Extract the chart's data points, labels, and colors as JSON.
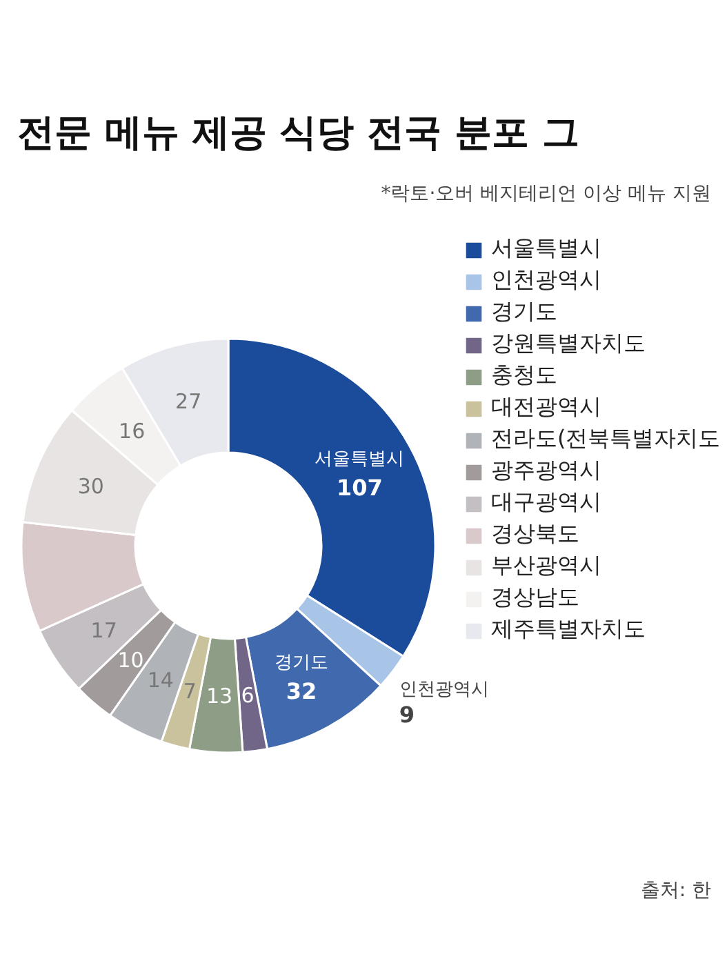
{
  "chart_data": {
    "type": "donut",
    "title": "전문 메뉴 제공 식당 전국 분포 그",
    "subtitle": "*락토·오버 베지테리언 이상 메뉴 지원",
    "annotations": [
      "출처: 한"
    ],
    "categories": [
      "서울특별시",
      "인천광역시",
      "경기도",
      "강원특별자치도",
      "충청도",
      "대전광역시",
      "전라도(전북특별자치도",
      "광주광역시",
      "대구광역시",
      "경상북도",
      "부산광역시",
      "경상남도",
      "제주특별자치도"
    ],
    "values": [
      107,
      9,
      32,
      6,
      13,
      7,
      14,
      10,
      17,
      27,
      30,
      16,
      27
    ],
    "colors": [
      "#1b4b9b",
      "#a8c4e6",
      "#4169ae",
      "#726688",
      "#8e9e86",
      "#c9c29c",
      "#b0b3b8",
      "#a19c9b",
      "#c4bfc2",
      "#d9c9cb",
      "#e9e4e4",
      "#f3f2f1",
      "#e8e9ee"
    ],
    "value_labels": [
      "서울특별시\n107",
      "인천광역시\n9",
      "경기도\n32",
      "6",
      "13",
      "7",
      "14",
      "10",
      "17",
      null,
      "30",
      "16",
      "27"
    ],
    "legend": "right"
  }
}
